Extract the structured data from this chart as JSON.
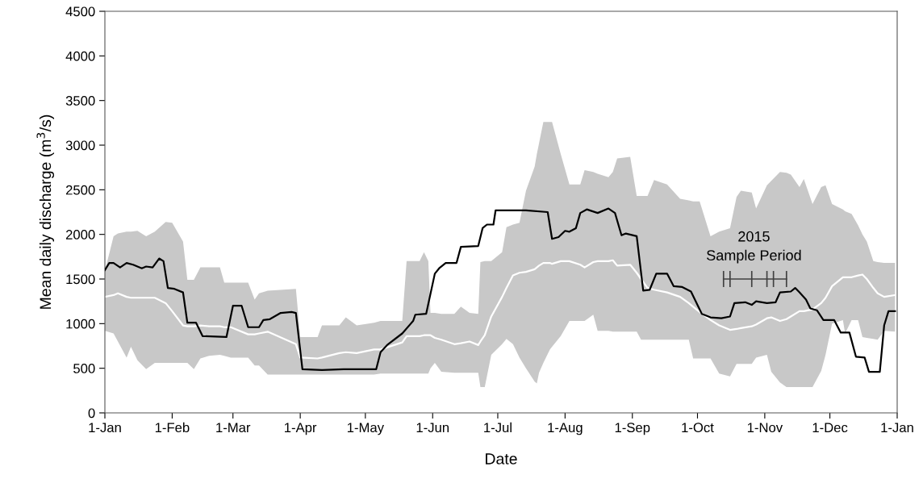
{
  "chart_data": {
    "type": "line",
    "xlabel": "Date",
    "ylabel": "Mean daily discharge (m$^{3}$/s)",
    "xlim": [
      "2015-01-01",
      "2016-01-01"
    ],
    "ylim": [
      0,
      4500
    ],
    "xticks": [
      {
        "value": "2015-01-01",
        "label": "1-Jan"
      },
      {
        "value": "2015-02-01",
        "label": "1-Feb"
      },
      {
        "value": "2015-03-01",
        "label": "1-Mar"
      },
      {
        "value": "2015-04-01",
        "label": "1-Apr"
      },
      {
        "value": "2015-05-01",
        "label": "1-May"
      },
      {
        "value": "2015-06-01",
        "label": "1-Jun"
      },
      {
        "value": "2015-07-01",
        "label": "1-Jul"
      },
      {
        "value": "2015-08-01",
        "label": "1-Aug"
      },
      {
        "value": "2015-09-01",
        "label": "1-Sep"
      },
      {
        "value": "2015-10-01",
        "label": "1-Oct"
      },
      {
        "value": "2015-11-01",
        "label": "1-Nov"
      },
      {
        "value": "2015-12-01",
        "label": "1-Dec"
      },
      {
        "value": "2016-01-01",
        "label": "1-Jan"
      }
    ],
    "yticks": [
      0,
      500,
      1000,
      1500,
      2000,
      2500,
      3000,
      3500,
      4000,
      4500
    ],
    "grid": false,
    "series": [
      {
        "color": "#ffffff",
        "x": [
          "2015-01-01",
          "2015-01-05",
          "2015-01-07",
          "2015-01-11",
          "2015-01-13",
          "2015-01-16",
          "2015-01-20",
          "2015-01-24",
          "2015-01-29",
          "2015-02-01",
          "2015-02-06",
          "2015-02-08",
          "2015-02-11",
          "2015-02-14",
          "2015-02-18",
          "2015-02-23",
          "2015-02-25",
          "2015-02-28",
          "2015-03-08",
          "2015-03-11",
          "2015-03-13",
          "2015-03-17",
          "2015-03-30",
          "2015-04-01",
          "2015-04-09",
          "2015-04-11",
          "2015-04-19",
          "2015-04-22",
          "2015-04-27",
          "2015-05-05",
          "2015-05-08",
          "2015-05-18",
          "2015-05-20",
          "2015-05-26",
          "2015-05-28",
          "2015-05-30",
          "2015-05-31",
          "2015-06-02",
          "2015-06-05",
          "2015-06-11",
          "2015-06-14",
          "2015-06-18",
          "2015-06-22",
          "2015-06-23",
          "2015-06-25",
          "2015-06-28",
          "2015-07-03",
          "2015-07-05",
          "2015-07-08",
          "2015-07-11",
          "2015-07-14",
          "2015-07-18",
          "2015-07-19",
          "2015-07-20",
          "2015-07-22",
          "2015-07-25",
          "2015-07-26",
          "2015-07-30",
          "2015-08-03",
          "2015-08-08",
          "2015-08-10",
          "2015-08-14",
          "2015-08-16",
          "2015-08-21",
          "2015-08-23",
          "2015-08-25",
          "2015-08-31",
          "2015-09-03",
          "2015-09-05",
          "2015-09-08",
          "2015-09-11",
          "2015-09-17",
          "2015-09-23",
          "2015-09-27",
          "2015-09-29",
          "2015-10-02",
          "2015-10-07",
          "2015-10-11",
          "2015-10-16",
          "2015-10-19",
          "2015-10-21",
          "2015-10-26",
          "2015-10-28",
          "2015-11-02",
          "2015-11-04",
          "2015-11-08",
          "2015-11-11",
          "2015-11-13",
          "2015-11-17",
          "2015-11-19",
          "2015-11-23",
          "2015-11-27",
          "2015-11-29",
          "2015-12-02",
          "2015-12-07",
          "2015-12-08",
          "2015-12-11",
          "2015-12-14",
          "2015-12-16",
          "2015-12-18",
          "2015-12-21",
          "2015-12-23",
          "2015-12-26",
          "2015-12-31"
        ],
        "values": [
          1300,
          1320,
          1340,
          1300,
          1290,
          1290,
          1290,
          1290,
          1230,
          1140,
          980,
          970,
          970,
          980,
          970,
          970,
          960,
          960,
          880,
          880,
          890,
          910,
          770,
          620,
          610,
          620,
          670,
          680,
          670,
          710,
          710,
          790,
          860,
          860,
          870,
          870,
          870,
          840,
          820,
          770,
          780,
          800,
          760,
          800,
          870,
          1080,
          1300,
          1400,
          1540,
          1570,
          1580,
          1610,
          1630,
          1650,
          1680,
          1680,
          1670,
          1700,
          1700,
          1660,
          1630,
          1690,
          1700,
          1700,
          1710,
          1650,
          1660,
          1570,
          1500,
          1400,
          1380,
          1350,
          1300,
          1230,
          1190,
          1130,
          1040,
          980,
          930,
          940,
          950,
          970,
          990,
          1060,
          1070,
          1030,
          1050,
          1080,
          1140,
          1140,
          1160,
          1230,
          1290,
          1420,
          1520,
          1520,
          1520,
          1540,
          1550,
          1500,
          1400,
          1340,
          1300,
          1320
        ],
        "lower": [
          920,
          890,
          800,
          620,
          740,
          590,
          490,
          560,
          560,
          560,
          560,
          560,
          490,
          610,
          640,
          650,
          640,
          620,
          620,
          530,
          530,
          430,
          430,
          430,
          430,
          430,
          430,
          430,
          430,
          430,
          440,
          440,
          440,
          440,
          440,
          440,
          500,
          560,
          460,
          450,
          450,
          450,
          450,
          290,
          290,
          650,
          770,
          830,
          770,
          620,
          500,
          350,
          330,
          450,
          560,
          710,
          740,
          860,
          1030,
          1030,
          1030,
          1100,
          920,
          920,
          910,
          910,
          910,
          910,
          820,
          820,
          820,
          820,
          820,
          820,
          610,
          610,
          610,
          440,
          410,
          550,
          550,
          550,
          620,
          650,
          460,
          340,
          290,
          290,
          290,
          290,
          290,
          470,
          650,
          1000,
          1040,
          890,
          1040,
          1040,
          850,
          840,
          830,
          820,
          920,
          910
        ],
        "upper": [
          1590,
          1980,
          2010,
          2030,
          2030,
          2040,
          1980,
          2030,
          2140,
          2130,
          1920,
          1490,
          1490,
          1630,
          1630,
          1630,
          1460,
          1460,
          1460,
          1270,
          1340,
          1370,
          1390,
          850,
          850,
          980,
          980,
          1070,
          980,
          1010,
          1030,
          1030,
          1700,
          1700,
          1800,
          1700,
          1120,
          1120,
          1110,
          1110,
          1190,
          1120,
          1110,
          1690,
          1700,
          1700,
          1800,
          2080,
          2110,
          2130,
          2490,
          2760,
          2900,
          3020,
          3260,
          3260,
          3260,
          2900,
          2560,
          2560,
          2720,
          2700,
          2680,
          2640,
          2700,
          2850,
          2870,
          2430,
          2430,
          2430,
          2610,
          2560,
          2400,
          2380,
          2370,
          2370,
          1980,
          2030,
          2070,
          2420,
          2490,
          2470,
          2290,
          2550,
          2600,
          2700,
          2690,
          2670,
          2530,
          2620,
          2340,
          2530,
          2550,
          2340,
          2280,
          2260,
          2230,
          2100,
          2000,
          1920,
          1700,
          1690,
          1680,
          1680
        ]
      },
      {
        "color": "#000000",
        "x": [
          "2015-01-01",
          "2015-01-03",
          "2015-01-05",
          "2015-01-08",
          "2015-01-11",
          "2015-01-14",
          "2015-01-18",
          "2015-01-20",
          "2015-01-23",
          "2015-01-26",
          "2015-01-28",
          "2015-01-30",
          "2015-02-02",
          "2015-02-06",
          "2015-02-08",
          "2015-02-12",
          "2015-02-15",
          "2015-02-26",
          "2015-03-01",
          "2015-03-05",
          "2015-03-08",
          "2015-03-13",
          "2015-03-15",
          "2015-03-18",
          "2015-03-23",
          "2015-03-28",
          "2015-03-30",
          "2015-04-02",
          "2015-04-11",
          "2015-04-21",
          "2015-05-06",
          "2015-05-08",
          "2015-05-11",
          "2015-05-18",
          "2015-05-23",
          "2015-05-24",
          "2015-05-29",
          "2015-06-02",
          "2015-06-04",
          "2015-06-07",
          "2015-06-12",
          "2015-06-14",
          "2015-06-22",
          "2015-06-24",
          "2015-06-26",
          "2015-06-29",
          "2015-06-30",
          "2015-07-14",
          "2015-07-24",
          "2015-07-26",
          "2015-07-29",
          "2015-08-01",
          "2015-08-03",
          "2015-08-06",
          "2015-08-08",
          "2015-08-11",
          "2015-08-16",
          "2015-08-21",
          "2015-08-24",
          "2015-08-27",
          "2015-08-29",
          "2015-09-03",
          "2015-09-06",
          "2015-09-09",
          "2015-09-12",
          "2015-09-17",
          "2015-09-20",
          "2015-09-24",
          "2015-09-28",
          "2015-10-03",
          "2015-10-07",
          "2015-10-12",
          "2015-10-16",
          "2015-10-18",
          "2015-10-23",
          "2015-10-26",
          "2015-10-28",
          "2015-11-02",
          "2015-11-06",
          "2015-11-08",
          "2015-11-13",
          "2015-11-15",
          "2015-11-17",
          "2015-11-20",
          "2015-11-22",
          "2015-11-25",
          "2015-11-28",
          "2015-12-03",
          "2015-12-06",
          "2015-12-10",
          "2015-12-13",
          "2015-12-17",
          "2015-12-19",
          "2015-12-24",
          "2015-12-26",
          "2015-12-28",
          "2015-12-31"
        ],
        "values": [
          1600,
          1680,
          1680,
          1630,
          1680,
          1660,
          1620,
          1640,
          1630,
          1730,
          1700,
          1400,
          1390,
          1350,
          1010,
          1010,
          860,
          850,
          1200,
          1200,
          960,
          960,
          1040,
          1050,
          1120,
          1130,
          1120,
          490,
          480,
          490,
          490,
          680,
          760,
          890,
          1030,
          1100,
          1110,
          1560,
          1620,
          1680,
          1680,
          1860,
          1870,
          2070,
          2110,
          2110,
          2270,
          2270,
          2250,
          1950,
          1970,
          2040,
          2030,
          2070,
          2240,
          2280,
          2240,
          2290,
          2240,
          1990,
          2010,
          1980,
          1370,
          1380,
          1560,
          1560,
          1420,
          1410,
          1360,
          1110,
          1070,
          1060,
          1080,
          1230,
          1240,
          1210,
          1250,
          1230,
          1240,
          1350,
          1360,
          1400,
          1350,
          1270,
          1170,
          1150,
          1040,
          1040,
          900,
          900,
          630,
          620,
          460,
          460,
          980,
          1140,
          1140
        ]
      },
      {
        "color": "#404040",
        "x": [
          "2015-10-13",
          "2015-10-16",
          "2015-10-26",
          "2015-11-02",
          "2015-11-05",
          "2015-11-11"
        ],
        "values": [
          1500,
          1500,
          1500,
          1500,
          1500,
          1500
        ],
        "errors": [
          90,
          90,
          90,
          90,
          90,
          90
        ]
      }
    ],
    "annotations": [
      {
        "text": "2015\nSample Period",
        "x": "2015-10-27",
        "y": 1500
      }
    ]
  }
}
